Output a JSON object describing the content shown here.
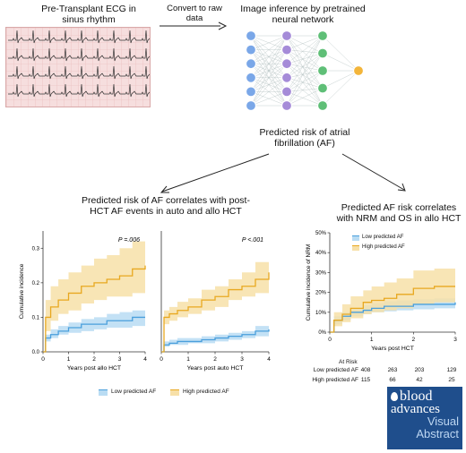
{
  "top": {
    "ecg_title": "Pre-Transplant ECG in\nsinus rhythm",
    "convert_label": "Convert to raw\ndata",
    "nn_title": "Image inference by pretrained\nneural network"
  },
  "center": {
    "predicted_label": "Predicted risk of atrial\nfibrillation (AF)"
  },
  "left_panel": {
    "title": "Predicted risk of AF correlates with post-\nHCT AF events in auto and allo HCT",
    "legend_low": "Low predicted AF",
    "legend_high": "High predicted AF"
  },
  "right_panel": {
    "title": "Predicted AF risk correlates\nwith NRM and OS in allo HCT",
    "at_risk_header": "At Risk",
    "at_risk_rows": [
      {
        "label": "Low predicted AF",
        "values": [
          "408",
          "263",
          "203",
          "129"
        ]
      },
      {
        "label": "High predicted AF",
        "values": [
          "115",
          "66",
          "42",
          "25"
        ]
      }
    ]
  },
  "logo": {
    "line1": "blood",
    "line2": "advances",
    "line3": "Visual",
    "line4": "Abstract"
  },
  "colors": {
    "low": "#4a9fdc",
    "low_band": "#b9dcf3",
    "high": "#e8a820",
    "high_band": "#f7e0a8",
    "nn_blue": "#7aa7e8",
    "nn_purple": "#a58bd8",
    "nn_green": "#5fbf77",
    "nn_orange": "#f3b53a"
  },
  "chart_data": [
    {
      "type": "line",
      "ylabel": "Cumulative incidence",
      "xlabel": "Years post allo HCT",
      "annotation": "P =.006",
      "xlim": [
        0,
        4
      ],
      "ylim": [
        0,
        0.35
      ],
      "xticks": [
        "0",
        "1",
        "2",
        "3",
        "4"
      ],
      "yticks": [
        "0.0",
        "0.1",
        "0.2",
        "0.3"
      ],
      "series": [
        {
          "name": "Low predicted AF",
          "x": [
            0,
            0.1,
            0.3,
            0.6,
            1.0,
            1.5,
            2.0,
            2.5,
            3.0,
            3.5,
            4.0
          ],
          "y": [
            0,
            0.04,
            0.05,
            0.06,
            0.07,
            0.08,
            0.08,
            0.09,
            0.09,
            0.1,
            0.1
          ],
          "lo": [
            0,
            0.03,
            0.04,
            0.05,
            0.055,
            0.06,
            0.065,
            0.07,
            0.07,
            0.075,
            0.075
          ],
          "hi": [
            0,
            0.05,
            0.065,
            0.075,
            0.085,
            0.095,
            0.1,
            0.11,
            0.115,
            0.12,
            0.125
          ]
        },
        {
          "name": "High predicted AF",
          "x": [
            0,
            0.1,
            0.3,
            0.6,
            1.0,
            1.5,
            2.0,
            2.5,
            3.0,
            3.5,
            4.0
          ],
          "y": [
            0,
            0.1,
            0.13,
            0.15,
            0.17,
            0.19,
            0.2,
            0.21,
            0.22,
            0.24,
            0.25
          ],
          "lo": [
            0,
            0.06,
            0.09,
            0.11,
            0.12,
            0.14,
            0.15,
            0.16,
            0.16,
            0.17,
            0.17
          ],
          "hi": [
            0,
            0.15,
            0.19,
            0.21,
            0.23,
            0.25,
            0.27,
            0.28,
            0.3,
            0.32,
            0.33
          ]
        }
      ]
    },
    {
      "type": "line",
      "ylabel": "",
      "xlabel": "Years post auto HCT",
      "annotation": "P <.001",
      "xlim": [
        0,
        4
      ],
      "ylim": [
        0,
        0.35
      ],
      "xticks": [
        "0",
        "1",
        "2",
        "3",
        "4"
      ],
      "yticks": [],
      "series": [
        {
          "name": "Low predicted AF",
          "x": [
            0,
            0.1,
            0.3,
            0.6,
            1.0,
            1.5,
            2.0,
            2.5,
            3.0,
            3.5,
            4.0
          ],
          "y": [
            0,
            0.02,
            0.025,
            0.03,
            0.03,
            0.035,
            0.04,
            0.045,
            0.05,
            0.06,
            0.065
          ],
          "lo": [
            0,
            0.015,
            0.02,
            0.02,
            0.025,
            0.025,
            0.03,
            0.035,
            0.04,
            0.045,
            0.05
          ],
          "hi": [
            0,
            0.03,
            0.035,
            0.04,
            0.04,
            0.045,
            0.05,
            0.055,
            0.06,
            0.075,
            0.08
          ]
        },
        {
          "name": "High predicted AF",
          "x": [
            0,
            0.1,
            0.3,
            0.6,
            1.0,
            1.5,
            2.0,
            2.5,
            3.0,
            3.5,
            4.0
          ],
          "y": [
            0,
            0.1,
            0.11,
            0.12,
            0.13,
            0.15,
            0.16,
            0.18,
            0.19,
            0.21,
            0.23
          ],
          "lo": [
            0,
            0.08,
            0.09,
            0.1,
            0.11,
            0.12,
            0.13,
            0.15,
            0.16,
            0.17,
            0.18
          ],
          "hi": [
            0,
            0.12,
            0.13,
            0.145,
            0.155,
            0.18,
            0.19,
            0.21,
            0.23,
            0.26,
            0.28
          ]
        }
      ]
    },
    {
      "type": "line",
      "ylabel": "Cumulative incidence of NRM",
      "xlabel": "Years post HCT",
      "annotation": "",
      "xlim": [
        0,
        3
      ],
      "ylim": [
        0,
        0.5
      ],
      "xticks": [
        "0",
        "1",
        "2",
        "3"
      ],
      "yticks": [
        "0%",
        "10%",
        "20%",
        "30%",
        "40%",
        "50%"
      ],
      "series": [
        {
          "name": "Low predicted AF",
          "x": [
            0,
            0.1,
            0.3,
            0.5,
            0.8,
            1.0,
            1.3,
            1.6,
            2.0,
            2.5,
            3.0
          ],
          "y": [
            0,
            0.06,
            0.08,
            0.1,
            0.11,
            0.12,
            0.13,
            0.13,
            0.14,
            0.14,
            0.15
          ],
          "lo": [
            0,
            0.04,
            0.06,
            0.08,
            0.09,
            0.1,
            0.105,
            0.11,
            0.115,
            0.12,
            0.12
          ],
          "hi": [
            0,
            0.08,
            0.1,
            0.12,
            0.135,
            0.145,
            0.155,
            0.16,
            0.165,
            0.17,
            0.18
          ]
        },
        {
          "name": "High predicted AF",
          "x": [
            0,
            0.1,
            0.3,
            0.5,
            0.8,
            1.0,
            1.3,
            1.6,
            2.0,
            2.5,
            3.0
          ],
          "y": [
            0,
            0.06,
            0.09,
            0.12,
            0.15,
            0.16,
            0.17,
            0.19,
            0.22,
            0.23,
            0.23
          ],
          "lo": [
            0,
            0.03,
            0.05,
            0.07,
            0.09,
            0.1,
            0.11,
            0.12,
            0.14,
            0.15,
            0.15
          ],
          "hi": [
            0,
            0.1,
            0.14,
            0.18,
            0.21,
            0.23,
            0.25,
            0.27,
            0.31,
            0.32,
            0.33
          ]
        }
      ],
      "legend_position": "top-left"
    }
  ]
}
